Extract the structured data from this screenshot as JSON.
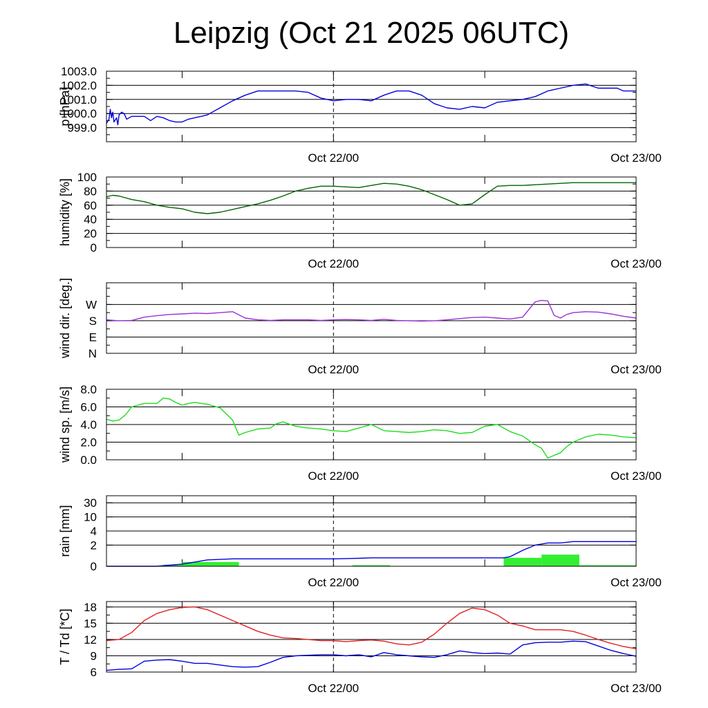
{
  "chart_data": {
    "type": "line",
    "title": "Leipzig (Oct 21 2025 06UTC)",
    "x_range_hours": [
      0,
      42
    ],
    "x_ticks": [
      {
        "hour": 6,
        "label": ""
      },
      {
        "hour": 18,
        "label": "Oct 22/00"
      },
      {
        "hour": 30,
        "label": ""
      },
      {
        "hour": 42,
        "label": "Oct 23/00"
      }
    ],
    "reference_line_hour": 18,
    "panels": [
      {
        "id": "pressure",
        "ylabel": "p [hPa]",
        "ylim": [
          998.0,
          1003.0
        ],
        "yticks": [
          999.0,
          1000.0,
          1001.0,
          1002.0,
          1003.0
        ],
        "ytick_labels": [
          "999.0",
          "1000.0",
          "1001.0",
          "1002.0",
          "1003.0"
        ],
        "series": [
          {
            "name": "pressure",
            "color": "#0000dd",
            "x": [
              0,
              0.2,
              0.3,
              0.4,
              0.5,
              0.6,
              0.8,
              0.9,
              1.0,
              1.2,
              1.4,
              1.6,
              2.0,
              2.5,
              3,
              3.5,
              4,
              4.5,
              5,
              5.5,
              6,
              6.5,
              7,
              7.5,
              8,
              9,
              10,
              11,
              12,
              13,
              14,
              15,
              16,
              17,
              18,
              19,
              20,
              21,
              22,
              23,
              24,
              25,
              26,
              27,
              28,
              29,
              30,
              31,
              32,
              33,
              34,
              35,
              36,
              37,
              38,
              39,
              40,
              40.5,
              41,
              41.5,
              42
            ],
            "y": [
              999.3,
              999.6,
              1000.3,
              999.7,
              1000.1,
              999.4,
              999.7,
              999.2,
              999.9,
              1000.1,
              1000.0,
              999.6,
              999.8,
              999.8,
              999.8,
              999.5,
              999.8,
              999.7,
              999.5,
              999.4,
              999.4,
              999.6,
              999.7,
              999.8,
              999.9,
              1000.4,
              1000.9,
              1001.3,
              1001.6,
              1001.6,
              1001.6,
              1001.6,
              1001.5,
              1001.1,
              1000.9,
              1001.0,
              1001.0,
              1000.9,
              1001.3,
              1001.6,
              1001.6,
              1001.3,
              1000.7,
              1000.4,
              1000.3,
              1000.5,
              1000.4,
              1000.8,
              1000.9,
              1001.0,
              1001.2,
              1001.6,
              1001.8,
              1002.0,
              1002.1,
              1001.8,
              1001.8,
              1001.8,
              1001.6,
              1001.6,
              1001.6
            ]
          }
        ]
      },
      {
        "id": "humidity",
        "ylabel": "humidity [%]",
        "ylim": [
          0,
          100
        ],
        "yticks": [
          0,
          20,
          40,
          60,
          80,
          100
        ],
        "ytick_labels": [
          "0",
          "20",
          "40",
          "60",
          "80",
          "100"
        ],
        "series": [
          {
            "name": "humidity",
            "color": "#006400",
            "x": [
              0,
              0.5,
              1,
              2,
              3,
              4,
              5,
              6,
              7,
              8,
              9,
              10,
              11,
              12,
              13,
              14,
              15,
              16,
              17,
              18,
              19,
              20,
              21,
              22,
              23,
              24,
              25,
              26,
              27,
              28,
              29,
              30,
              31,
              32,
              33,
              34,
              35,
              36,
              37,
              38,
              39,
              40,
              41,
              42
            ],
            "y": [
              72,
              74,
              73,
              68,
              65,
              60,
              57,
              55,
              50,
              48,
              50,
              54,
              58,
              62,
              67,
              73,
              80,
              84,
              87,
              87,
              86,
              85,
              88,
              91,
              90,
              87,
              82,
              75,
              68,
              60,
              62,
              75,
              87,
              88,
              88,
              89,
              90,
              91,
              92,
              92,
              92,
              92,
              92,
              92
            ]
          }
        ]
      },
      {
        "id": "wind_dir",
        "ylabel": "wind dir. [deg.]",
        "ylim": [
          0,
          390
        ],
        "yticks": [
          0,
          90,
          180,
          270
        ],
        "ytick_labels": [
          "N",
          "E",
          "S",
          "W"
        ],
        "series": [
          {
            "name": "wind direction",
            "color": "#9b30d8",
            "x": [
              0,
              1,
              2,
              3,
              4,
              5,
              6,
              7,
              8,
              9,
              10,
              11,
              12,
              13,
              14,
              15,
              16,
              17,
              18,
              19,
              20,
              21,
              22,
              23,
              24,
              25,
              26,
              27,
              28,
              29,
              30,
              31,
              32,
              33,
              34,
              34.5,
              35,
              35.5,
              36,
              36.5,
              37,
              38,
              39,
              40,
              41,
              42
            ],
            "y": [
              185,
              180,
              182,
              200,
              208,
              215,
              218,
              222,
              220,
              225,
              230,
              195,
              185,
              182,
              185,
              185,
              185,
              182,
              185,
              187,
              185,
              182,
              188,
              182,
              180,
              178,
              180,
              185,
              192,
              198,
              200,
              195,
              190,
              200,
              285,
              293,
              290,
              210,
              195,
              215,
              225,
              230,
              228,
              218,
              205,
              195
            ]
          }
        ]
      },
      {
        "id": "wind_speed",
        "ylabel": "wind sp. [m/s]",
        "ylim": [
          0,
          8
        ],
        "yticks": [
          0,
          2,
          4,
          6,
          8
        ],
        "ytick_labels": [
          "0.0",
          "2.0",
          "4.0",
          "6.0",
          "8.0"
        ],
        "series": [
          {
            "name": "wind speed",
            "color": "#1cdc1c",
            "x": [
              0,
              0.5,
              1,
              1.5,
              2,
              3,
              4,
              4.5,
              5,
              5.5,
              6,
              6.5,
              7,
              8,
              9,
              10,
              10.5,
              11,
              12,
              13,
              13.5,
              14,
              15,
              16,
              17,
              18,
              19,
              20,
              21,
              22,
              23,
              24,
              25,
              26,
              27,
              28,
              29,
              30,
              31,
              32,
              33,
              34,
              34.5,
              35,
              35.5,
              36,
              36.5,
              37,
              38,
              39,
              40,
              41,
              42
            ],
            "y": [
              4.6,
              4.4,
              4.5,
              5.1,
              6.0,
              6.4,
              6.4,
              7.0,
              6.9,
              6.5,
              6.2,
              6.4,
              6.5,
              6.3,
              5.9,
              4.5,
              2.8,
              3.1,
              3.5,
              3.6,
              4.1,
              4.3,
              3.8,
              3.6,
              3.5,
              3.3,
              3.2,
              3.6,
              4.0,
              3.3,
              3.2,
              3.1,
              3.2,
              3.4,
              3.3,
              3.0,
              3.1,
              3.8,
              4.0,
              3.2,
              2.7,
              1.7,
              1.3,
              0.2,
              0.5,
              0.8,
              1.5,
              2.0,
              2.6,
              2.9,
              2.8,
              2.6,
              2.5
            ]
          }
        ]
      },
      {
        "id": "rain",
        "ylabel": "rain [mm]",
        "ylim": [
          0,
          30
        ],
        "yticks": [
          0,
          2,
          4,
          10,
          30
        ],
        "ytick_labels": [
          "0",
          "2",
          "4",
          "10",
          "30"
        ],
        "scale": "piecewise",
        "bars": [
          {
            "x0": 4.5,
            "x1": 6,
            "value": 0.15
          },
          {
            "x0": 6,
            "x1": 10.5,
            "value": 0.4
          },
          {
            "x0": 19.5,
            "x1": 22.5,
            "value": 0.1
          },
          {
            "x0": 31.5,
            "x1": 34.5,
            "value": 0.8
          },
          {
            "x0": 34.5,
            "x1": 37.5,
            "value": 1.1
          },
          {
            "x0": 37.5,
            "x1": 42,
            "value": 0.1
          }
        ],
        "series": [
          {
            "name": "accumulated rain",
            "color": "#0000dd",
            "x": [
              0,
              4,
              5,
              6,
              7,
              8,
              10,
              18,
              20,
              21,
              22,
              24,
              31.5,
              32,
              33,
              34,
              35,
              36,
              37,
              42
            ],
            "y": [
              0,
              0.0,
              0.1,
              0.2,
              0.4,
              0.6,
              0.7,
              0.7,
              0.75,
              0.8,
              0.8,
              0.8,
              0.8,
              0.9,
              1.5,
              2.0,
              2.3,
              2.3,
              2.5,
              2.5
            ]
          }
        ]
      },
      {
        "id": "temperature",
        "ylabel": "T / Td [*C]",
        "ylim": [
          6,
          19
        ],
        "yticks": [
          6,
          9,
          12,
          15,
          18
        ],
        "ytick_labels": [
          "6",
          "9",
          "12",
          "15",
          "18"
        ],
        "series": [
          {
            "name": "temperature",
            "color": "#e02020",
            "x": [
              0,
              1,
              2,
              3,
              4,
              5,
              6,
              7,
              8,
              9,
              10,
              11,
              12,
              13,
              14,
              15,
              16,
              17,
              18,
              19,
              20,
              21,
              22,
              23,
              24,
              25,
              26,
              27,
              28,
              29,
              30,
              31,
              32,
              33,
              34,
              35,
              36,
              37,
              38,
              39,
              40,
              41,
              42
            ],
            "y": [
              11.8,
              12.0,
              13.3,
              15.5,
              16.8,
              17.5,
              17.9,
              18.0,
              17.5,
              16.5,
              15.5,
              14.5,
              13.5,
              12.8,
              12.3,
              12.2,
              12.0,
              11.8,
              11.8,
              11.6,
              11.8,
              11.9,
              11.7,
              11.2,
              11.0,
              11.5,
              13.0,
              15.0,
              16.8,
              17.8,
              17.5,
              16.5,
              15.0,
              14.5,
              13.8,
              13.8,
              13.8,
              13.5,
              12.8,
              12.0,
              11.3,
              10.7,
              10.3
            ]
          },
          {
            "name": "dew point",
            "color": "#0000dd",
            "x": [
              0,
              1,
              2,
              3,
              4,
              5,
              6,
              7,
              8,
              9,
              10,
              11,
              12,
              13,
              14,
              15,
              16,
              17,
              18,
              19,
              20,
              21,
              22,
              23,
              24,
              25,
              26,
              27,
              28,
              29,
              30,
              31,
              32,
              33,
              34,
              35,
              36,
              37,
              38,
              39,
              40,
              41,
              42
            ],
            "y": [
              6.3,
              6.5,
              6.6,
              8.0,
              8.2,
              8.3,
              8.0,
              7.6,
              7.6,
              7.3,
              7.0,
              6.9,
              7.0,
              7.8,
              8.7,
              9.0,
              9.1,
              9.2,
              9.2,
              9.0,
              9.2,
              8.8,
              9.6,
              9.2,
              9.0,
              8.8,
              8.7,
              9.2,
              9.9,
              9.6,
              9.4,
              9.5,
              9.3,
              11.0,
              11.4,
              11.5,
              11.5,
              11.7,
              11.6,
              10.8,
              10.0,
              9.4,
              8.9
            ]
          }
        ]
      }
    ]
  }
}
